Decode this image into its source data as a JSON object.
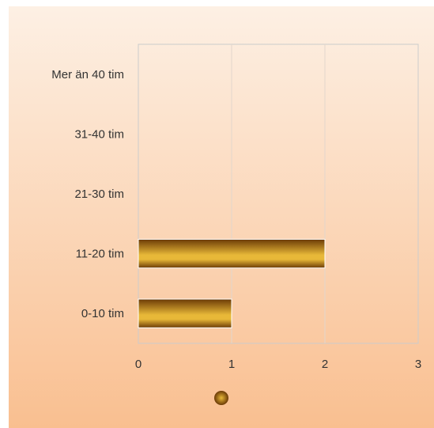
{
  "chart_data": {
    "type": "bar",
    "orientation": "horizontal",
    "categories": [
      "0-10 tim",
      "11-20 tim",
      "21-30 tim",
      "31-40 tim",
      "Mer än 40 tim"
    ],
    "values": [
      1,
      2,
      0,
      0,
      0
    ],
    "xlim": [
      0,
      3
    ],
    "x_ticks": [
      "0",
      "1",
      "2",
      "3"
    ],
    "grid": "vertical",
    "legend": "bottom-center",
    "title": "",
    "xlabel": "",
    "ylabel": "",
    "colors": {
      "background_top": "#FDF0E4",
      "background_bottom": "#F9BF90",
      "bar_dark": "#6B3A06",
      "bar_light": "#E8B838",
      "plot_border": "#CCCCCC",
      "grid": "#E2D6CC"
    }
  }
}
